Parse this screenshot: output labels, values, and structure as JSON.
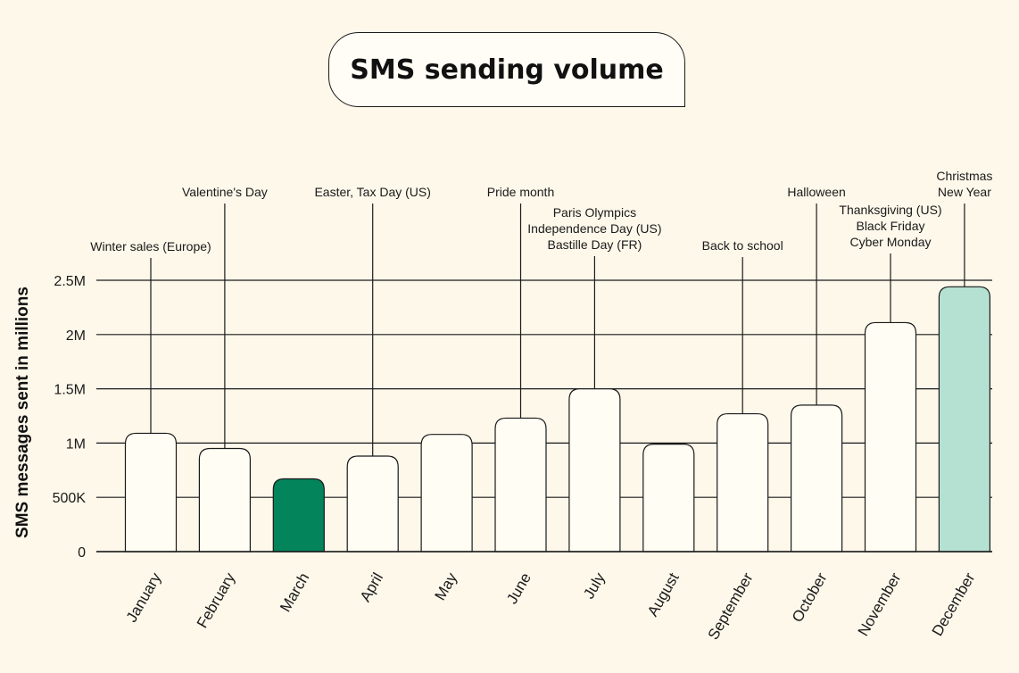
{
  "chart_data": {
    "type": "bar",
    "title": "SMS sending volume",
    "ylabel": "SMS messages sent in millions",
    "xlabel": "",
    "ylim": [
      0,
      2.5
    ],
    "yticks": [
      {
        "value": 0,
        "label": "0"
      },
      {
        "value": 0.5,
        "label": "500K"
      },
      {
        "value": 1,
        "label": "1M"
      },
      {
        "value": 1.5,
        "label": "1.5M"
      },
      {
        "value": 2,
        "label": "2M"
      },
      {
        "value": 2.5,
        "label": "2.5M"
      }
    ],
    "grid": true,
    "categories": [
      "January",
      "February",
      "March",
      "April",
      "May",
      "June",
      "July",
      "August",
      "September",
      "October",
      "November",
      "December"
    ],
    "values": [
      1.09,
      0.95,
      0.67,
      0.88,
      1.08,
      1.23,
      1.5,
      0.99,
      1.27,
      1.35,
      2.11,
      2.44
    ],
    "bar_colors": [
      "#fffdf4",
      "#fffdf4",
      "#03845a",
      "#fffdf4",
      "#fffdf4",
      "#fffdf4",
      "#fffdf4",
      "#fffdf4",
      "#fffdf4",
      "#fffdf4",
      "#fffdf4",
      "#b5e1d3"
    ],
    "annotations": [
      {
        "category": "January",
        "lines": [
          "Winter sales (Europe)"
        ]
      },
      {
        "category": "February",
        "lines": [
          "Valentine's Day"
        ]
      },
      {
        "category": "April",
        "lines": [
          "Easter, Tax Day (US)"
        ]
      },
      {
        "category": "June",
        "lines": [
          "Pride month"
        ]
      },
      {
        "category": "July",
        "lines": [
          "Paris Olympics",
          "Independence Day (US)",
          "Bastille Day (FR)"
        ]
      },
      {
        "category": "September",
        "lines": [
          "Back to school"
        ]
      },
      {
        "category": "October",
        "lines": [
          "Halloween"
        ]
      },
      {
        "category": "November",
        "lines": [
          "Thanksgiving (US)",
          "Black Friday",
          "Cyber Monday"
        ]
      },
      {
        "category": "December",
        "lines": [
          "Christmas",
          "New Year"
        ]
      }
    ]
  }
}
